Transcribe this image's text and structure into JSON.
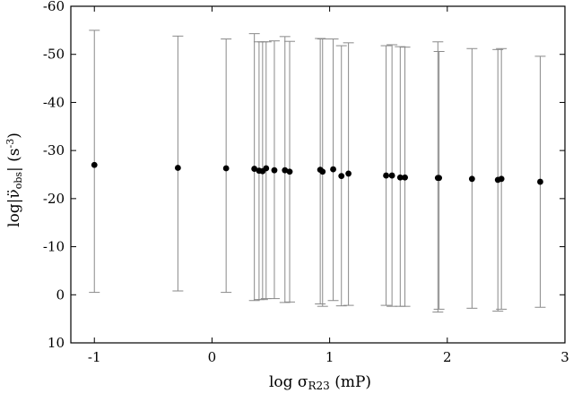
{
  "chart_data": {
    "type": "scatter",
    "xlabel": {
      "prefix": "log σ",
      "sub": "R23",
      "suffix": " (mP)"
    },
    "ylabel": {
      "prefix": "log|",
      "vdot": "ν̈",
      "sub": "obs",
      "suffix": "| (s",
      "sup": "-3",
      "end": ")"
    },
    "xlim": [
      -1.2,
      3.0
    ],
    "ylim": [
      10,
      -60
    ],
    "y_axis_inverted": true,
    "xticks": [
      -1,
      0,
      1,
      2,
      3
    ],
    "xtick_labels": [
      "-1",
      "0",
      "1",
      "2",
      "3"
    ],
    "yticks": [
      -60,
      -50,
      -40,
      -30,
      -20,
      -10,
      0,
      10
    ],
    "ytick_labels": [
      "-60",
      "-50",
      "-40",
      "-30",
      "-20",
      "-10",
      "0",
      "10"
    ],
    "grid": false,
    "legend": "none",
    "points": [
      {
        "x": -1.0,
        "y": -27.0,
        "err_low": -0.5,
        "err_high": -55.0
      },
      {
        "x": -0.29,
        "y": -26.4,
        "err_low": -0.8,
        "err_high": -53.8
      },
      {
        "x": 0.12,
        "y": -26.3,
        "err_low": -0.5,
        "err_high": -53.2
      },
      {
        "x": 0.36,
        "y": -26.2,
        "err_low": 1.2,
        "err_high": -54.3
      },
      {
        "x": 0.4,
        "y": -25.8,
        "err_low": 1.0,
        "err_high": -52.6
      },
      {
        "x": 0.43,
        "y": -25.7,
        "err_low": 1.0,
        "err_high": -52.6
      },
      {
        "x": 0.46,
        "y": -26.3,
        "err_low": 0.8,
        "err_high": -52.6
      },
      {
        "x": 0.53,
        "y": -25.9,
        "err_low": 0.8,
        "err_high": -52.8
      },
      {
        "x": 0.62,
        "y": -25.9,
        "err_low": 1.6,
        "err_high": -53.7
      },
      {
        "x": 0.66,
        "y": -25.6,
        "err_low": 1.5,
        "err_high": -52.7
      },
      {
        "x": 0.92,
        "y": -26.0,
        "err_low": 1.9,
        "err_high": -53.3
      },
      {
        "x": 0.94,
        "y": -25.6,
        "err_low": 2.4,
        "err_high": -53.2
      },
      {
        "x": 1.03,
        "y": -26.1,
        "err_low": 1.2,
        "err_high": -53.2
      },
      {
        "x": 1.1,
        "y": -24.7,
        "err_low": 2.3,
        "err_high": -51.8
      },
      {
        "x": 1.16,
        "y": -25.2,
        "err_low": 2.2,
        "err_high": -52.4
      },
      {
        "x": 1.48,
        "y": -24.8,
        "err_low": 2.2,
        "err_high": -51.8
      },
      {
        "x": 1.53,
        "y": -24.8,
        "err_low": 2.4,
        "err_high": -52.0
      },
      {
        "x": 1.6,
        "y": -24.4,
        "err_low": 2.4,
        "err_high": -51.6
      },
      {
        "x": 1.64,
        "y": -24.4,
        "err_low": 2.4,
        "err_high": -51.5
      },
      {
        "x": 1.92,
        "y": -24.3,
        "err_low": 3.6,
        "err_high": -52.6
      },
      {
        "x": 1.93,
        "y": -24.3,
        "err_low": 3.0,
        "err_high": -50.6
      },
      {
        "x": 2.21,
        "y": -24.1,
        "err_low": 2.8,
        "err_high": -51.2
      },
      {
        "x": 2.43,
        "y": -23.9,
        "err_low": 3.4,
        "err_high": -51.0
      },
      {
        "x": 2.46,
        "y": -24.1,
        "err_low": 3.0,
        "err_high": -51.2
      },
      {
        "x": 2.79,
        "y": -23.5,
        "err_low": 2.6,
        "err_high": -49.6
      }
    ],
    "colors": {
      "points": "#000000",
      "errorbars": "#8a8a8a",
      "frame": "#000000"
    }
  }
}
